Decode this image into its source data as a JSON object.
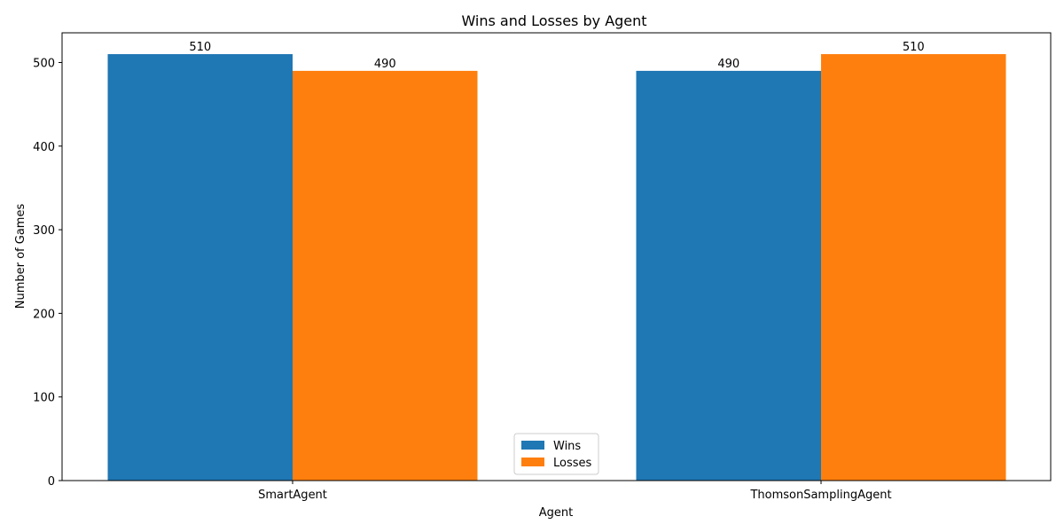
{
  "chart_data": {
    "type": "bar",
    "title": "Wins and Losses by Agent",
    "xlabel": "Agent",
    "ylabel": "Number of Games",
    "categories": [
      "SmartAgent",
      "ThomsonSamplingAgent"
    ],
    "series": [
      {
        "name": "Wins",
        "values": [
          510,
          490
        ],
        "color": "#1f77b4"
      },
      {
        "name": "Losses",
        "values": [
          490,
          510
        ],
        "color": "#ff7f0e"
      }
    ],
    "ylim": [
      0,
      535.5
    ],
    "yticks": [
      0,
      100,
      200,
      300,
      400,
      500
    ],
    "grid": false,
    "legend_position": "bottom-center"
  }
}
